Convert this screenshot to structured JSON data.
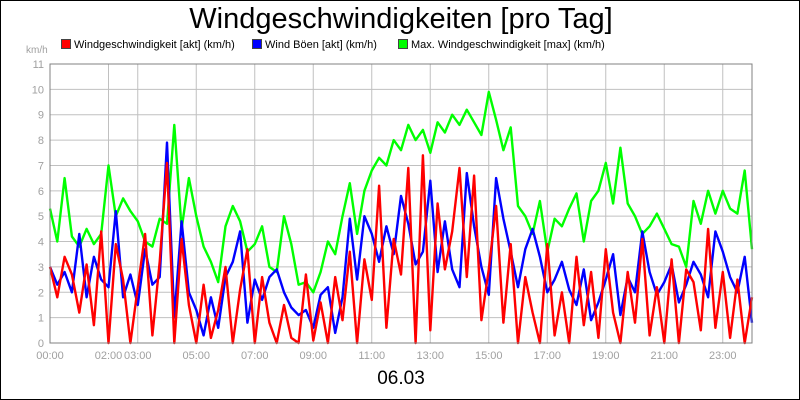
{
  "chart_data": {
    "type": "line",
    "title": "Windgeschwindigkeiten [pro Tag]",
    "ylabel": "km/h",
    "xlabel": "06.03",
    "ylim": [
      0,
      11
    ],
    "xlim": [
      0,
      24
    ],
    "y_ticks": [
      "0",
      "1",
      "2",
      "3",
      "4",
      "5",
      "6",
      "7",
      "8",
      "9",
      "10",
      "11"
    ],
    "x_ticks": [
      {
        "x": 0,
        "label": "00:00"
      },
      {
        "x": 2,
        "label": "02:00"
      },
      {
        "x": 3,
        "label": "03:00"
      },
      {
        "x": 5,
        "label": "05:00"
      },
      {
        "x": 7,
        "label": "07:00"
      },
      {
        "x": 9,
        "label": "09:00"
      },
      {
        "x": 11,
        "label": "11:00"
      },
      {
        "x": 13,
        "label": "13:00"
      },
      {
        "x": 15,
        "label": "15:00"
      },
      {
        "x": 17,
        "label": "17:00"
      },
      {
        "x": 19,
        "label": "19:00"
      },
      {
        "x": 21,
        "label": "21:00"
      },
      {
        "x": 23,
        "label": "23:00"
      }
    ],
    "grid": true,
    "legend_position": "top",
    "series": [
      {
        "name": "Max. Windgeschwindigkeit [max] (km/h)",
        "color": "#00ff00",
        "x": [
          0,
          0.25,
          0.5,
          0.75,
          1,
          1.25,
          1.5,
          1.75,
          2,
          2.25,
          2.5,
          2.75,
          3,
          3.25,
          3.5,
          3.75,
          4,
          4.25,
          4.5,
          4.75,
          5,
          5.25,
          5.5,
          5.75,
          6,
          6.25,
          6.5,
          6.75,
          7,
          7.25,
          7.5,
          7.75,
          8,
          8.25,
          8.5,
          8.75,
          9,
          9.25,
          9.5,
          9.75,
          10,
          10.25,
          10.5,
          10.75,
          11,
          11.25,
          11.5,
          11.75,
          12,
          12.25,
          12.5,
          12.75,
          13,
          13.25,
          13.5,
          13.75,
          14,
          14.25,
          14.5,
          14.75,
          15,
          15.25,
          15.5,
          15.75,
          16,
          16.25,
          16.5,
          16.75,
          17,
          17.25,
          17.5,
          17.75,
          18,
          18.25,
          18.5,
          18.75,
          19,
          19.25,
          19.5,
          19.75,
          20,
          20.25,
          20.5,
          20.75,
          21,
          21.25,
          21.5,
          21.75,
          22,
          22.25,
          22.5,
          22.75,
          23,
          23.25,
          23.5,
          23.75,
          24
        ],
        "values": [
          5.3,
          4.0,
          6.5,
          4.2,
          3.8,
          4.5,
          3.9,
          4.3,
          7.0,
          5.0,
          5.7,
          5.2,
          4.8,
          4.0,
          3.8,
          4.9,
          4.7,
          8.6,
          4.5,
          6.5,
          5.0,
          3.8,
          3.2,
          2.4,
          4.6,
          5.4,
          4.8,
          3.6,
          3.9,
          4.6,
          3.0,
          2.8,
          5.0,
          3.9,
          2.3,
          2.4,
          2.0,
          2.8,
          4.0,
          3.5,
          5.0,
          6.3,
          4.3,
          6.0,
          6.8,
          7.3,
          7.0,
          8.0,
          7.6,
          8.6,
          8.0,
          8.4,
          7.5,
          8.7,
          8.3,
          9.0,
          8.6,
          9.2,
          8.7,
          8.2,
          9.9,
          8.8,
          7.6,
          8.5,
          5.4,
          5.0,
          4.3,
          5.6,
          3.6,
          4.9,
          4.6,
          5.3,
          5.9,
          4.0,
          5.6,
          6.0,
          7.1,
          5.5,
          7.7,
          5.5,
          5.0,
          4.3,
          4.6,
          5.1,
          4.5,
          3.9,
          3.8,
          3.0,
          5.6,
          4.7,
          6.0,
          5.1,
          6.0,
          5.3,
          5.1,
          6.8,
          3.7
        ]
      },
      {
        "name": "Wind Böen [akt] (km/h)",
        "color": "#0000ff",
        "x": [
          0,
          0.25,
          0.5,
          0.75,
          1,
          1.25,
          1.5,
          1.75,
          2,
          2.25,
          2.5,
          2.75,
          3,
          3.25,
          3.5,
          3.75,
          4,
          4.25,
          4.5,
          4.75,
          5,
          5.25,
          5.5,
          5.75,
          6,
          6.25,
          6.5,
          6.75,
          7,
          7.25,
          7.5,
          7.75,
          8,
          8.25,
          8.5,
          8.75,
          9,
          9.25,
          9.5,
          9.75,
          10,
          10.25,
          10.5,
          10.75,
          11,
          11.25,
          11.5,
          11.75,
          12,
          12.25,
          12.5,
          12.75,
          13,
          13.25,
          13.5,
          13.75,
          14,
          14.25,
          14.5,
          14.75,
          15,
          15.25,
          15.5,
          15.75,
          16,
          16.25,
          16.5,
          16.75,
          17,
          17.25,
          17.5,
          17.75,
          18,
          18.25,
          18.5,
          18.75,
          19,
          19.25,
          19.5,
          19.75,
          20,
          20.25,
          20.5,
          20.75,
          21,
          21.25,
          21.5,
          21.75,
          22,
          22.25,
          22.5,
          22.75,
          23,
          23.25,
          23.5,
          23.75,
          24
        ],
        "values": [
          3.0,
          2.3,
          2.8,
          2.0,
          4.3,
          1.8,
          3.4,
          2.5,
          2.2,
          5.2,
          1.8,
          2.7,
          1.5,
          3.7,
          2.3,
          2.6,
          7.9,
          1.0,
          4.8,
          2.0,
          1.3,
          0.3,
          1.8,
          0.6,
          2.6,
          3.2,
          4.4,
          0.8,
          2.5,
          1.7,
          2.6,
          2.9,
          2.0,
          1.4,
          1.1,
          1.3,
          0.6,
          1.9,
          2.2,
          0.4,
          1.8,
          4.9,
          2.5,
          5.0,
          4.3,
          3.2,
          4.6,
          3.5,
          5.8,
          4.7,
          3.1,
          3.6,
          6.4,
          2.8,
          4.8,
          2.9,
          2.2,
          6.7,
          4.6,
          3.0,
          1.9,
          6.5,
          4.9,
          3.6,
          2.2,
          3.7,
          4.5,
          3.4,
          2.0,
          2.5,
          3.2,
          2.1,
          1.5,
          2.9,
          0.9,
          1.6,
          2.5,
          3.5,
          1.1,
          2.6,
          2.0,
          4.4,
          2.8,
          1.9,
          2.4,
          3.1,
          1.6,
          2.3,
          3.2,
          2.7,
          1.8,
          4.4,
          3.6,
          2.6,
          2.0,
          3.4,
          0.8
        ]
      },
      {
        "name": "Windgeschwindigkeit [akt] (km/h)",
        "color": "#ff0000",
        "x": [
          0,
          0.25,
          0.5,
          0.75,
          1,
          1.25,
          1.5,
          1.75,
          2,
          2.25,
          2.5,
          2.75,
          3,
          3.25,
          3.5,
          3.75,
          4,
          4.25,
          4.5,
          4.75,
          5,
          5.25,
          5.5,
          5.75,
          6,
          6.25,
          6.5,
          6.75,
          7,
          7.25,
          7.5,
          7.75,
          8,
          8.25,
          8.5,
          8.75,
          9,
          9.25,
          9.5,
          9.75,
          10,
          10.25,
          10.5,
          10.75,
          11,
          11.25,
          11.5,
          11.75,
          12,
          12.25,
          12.5,
          12.75,
          13,
          13.25,
          13.5,
          13.75,
          14,
          14.25,
          14.5,
          14.75,
          15,
          15.25,
          15.5,
          15.75,
          16,
          16.25,
          16.5,
          16.75,
          17,
          17.25,
          17.5,
          17.75,
          18,
          18.25,
          18.5,
          18.75,
          19,
          19.25,
          19.5,
          19.75,
          20,
          20.25,
          20.5,
          20.75,
          21,
          21.25,
          21.5,
          21.75,
          22,
          22.25,
          22.5,
          22.75,
          23,
          23.25,
          23.5,
          23.75,
          24
        ],
        "values": [
          3.0,
          1.8,
          3.4,
          2.7,
          1.2,
          3.1,
          0.7,
          4.4,
          0.0,
          3.9,
          2.5,
          0.0,
          2.2,
          4.3,
          0.3,
          3.2,
          7.1,
          0.0,
          4.1,
          1.5,
          0.0,
          2.3,
          0.2,
          1.3,
          3.0,
          0.0,
          2.1,
          3.7,
          0.0,
          2.6,
          0.8,
          0.0,
          1.5,
          0.2,
          0.0,
          2.7,
          0.1,
          1.6,
          0.0,
          2.6,
          0.9,
          3.6,
          0.0,
          3.3,
          1.7,
          6.2,
          0.6,
          4.1,
          2.7,
          6.9,
          0.0,
          7.4,
          0.5,
          5.5,
          2.9,
          4.4,
          6.9,
          2.6,
          6.6,
          0.9,
          2.9,
          5.4,
          0.8,
          3.9,
          0.0,
          2.6,
          1.2,
          0.0,
          3.9,
          0.3,
          2.0,
          0.0,
          3.4,
          0.7,
          2.8,
          0.2,
          3.7,
          1.2,
          0.0,
          2.8,
          0.8,
          4.1,
          0.3,
          2.2,
          0.0,
          3.3,
          0.0,
          2.9,
          2.4,
          0.5,
          4.5,
          0.6,
          2.8,
          0.2,
          2.5,
          0.0,
          1.8
        ]
      }
    ]
  },
  "legend_items": [
    {
      "label": "Windgeschwindigkeit [akt] (km/h)",
      "color": "#ff0000"
    },
    {
      "label": "Wind Böen [akt] (km/h)",
      "color": "#0000ff"
    },
    {
      "label": "Max. Windgeschwindigkeit [max] (km/h)",
      "color": "#00ff00"
    }
  ]
}
